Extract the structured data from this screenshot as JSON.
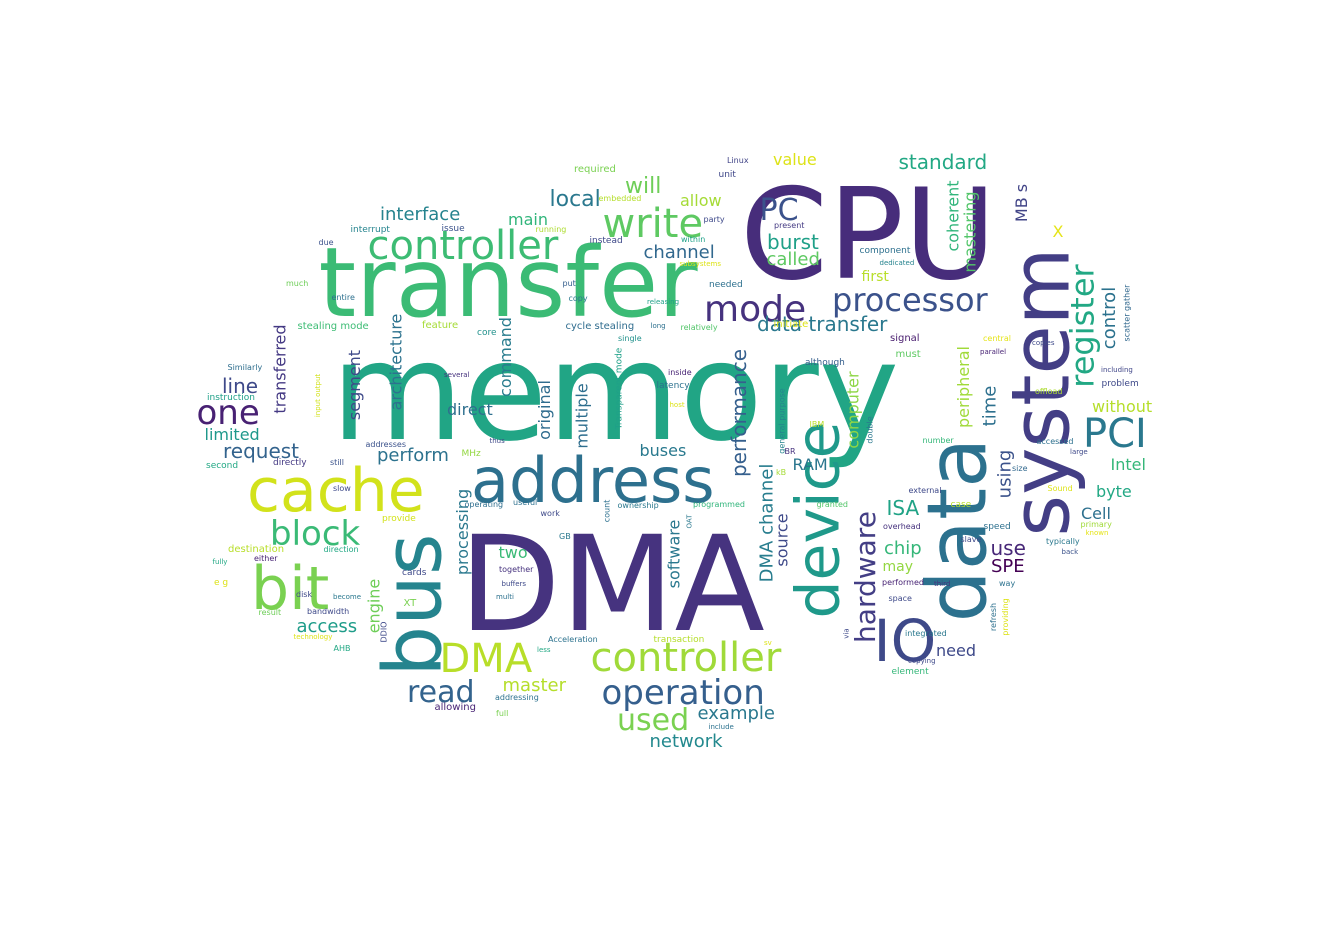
{
  "cloud": {
    "words": [
      {
        "text": "memory",
        "color": "#21a585"
      },
      {
        "text": "CPU",
        "color": "#472d7b"
      },
      {
        "text": "DMA",
        "color": "#46337f"
      },
      {
        "text": "transfer",
        "color": "#3bbb75"
      },
      {
        "text": "system",
        "color": "#433e85",
        "vertical": true
      },
      {
        "text": "data",
        "color": "#2c718e",
        "vertical": true
      },
      {
        "text": "device",
        "color": "#1f998a",
        "vertical": true
      },
      {
        "text": "bus",
        "color": "#25848e",
        "vertical": true
      },
      {
        "text": "address",
        "color": "#2d708e"
      },
      {
        "text": "cache",
        "color": "#d2e21b"
      },
      {
        "text": "bit",
        "color": "#7ad151"
      },
      {
        "text": "controller",
        "color": "#3dbc74"
      },
      {
        "text": "controller",
        "color": "#a0da39"
      },
      {
        "text": "DMA",
        "color": "#b8de29"
      },
      {
        "text": "write",
        "color": "#5ec962"
      },
      {
        "text": "mode",
        "color": "#46327e"
      },
      {
        "text": "processor",
        "color": "#3b528b"
      },
      {
        "text": "operation",
        "color": "#355f8d"
      },
      {
        "text": "block",
        "color": "#3aba76"
      },
      {
        "text": "register",
        "color": "#22a884",
        "vertical": true
      },
      {
        "text": "PCI",
        "color": "#2a788e"
      },
      {
        "text": "one",
        "color": "#482173"
      },
      {
        "text": "IO",
        "color": "#3e4989"
      },
      {
        "text": "hardware",
        "color": "#433e85",
        "vertical": true
      },
      {
        "text": "read",
        "color": "#33638d"
      },
      {
        "text": "used",
        "color": "#7ad151"
      },
      {
        "text": "data transfer",
        "color": "#2a788e"
      },
      {
        "text": "performance",
        "color": "#355f8d",
        "vertical": true
      },
      {
        "text": "local",
        "color": "#2a788e"
      },
      {
        "text": "PC",
        "color": "#3b528b"
      },
      {
        "text": "DMA channel",
        "color": "#287d8e",
        "vertical": true
      },
      {
        "text": "standard",
        "color": "#22a884"
      },
      {
        "text": "burst",
        "color": "#1fa088"
      },
      {
        "text": "called",
        "color": "#5ec962"
      },
      {
        "text": "channel",
        "color": "#31688e"
      },
      {
        "text": "will",
        "color": "#6ece58"
      },
      {
        "text": "allow",
        "color": "#a5db36"
      },
      {
        "text": "master",
        "color": "#b5de2b"
      },
      {
        "text": "example",
        "color": "#2a788e"
      },
      {
        "text": "network",
        "color": "#23898e"
      },
      {
        "text": "interface",
        "color": "#25838e"
      },
      {
        "text": "main",
        "color": "#31b57b"
      },
      {
        "text": "line",
        "color": "#3e4989"
      },
      {
        "text": "limited",
        "color": "#1f988b"
      },
      {
        "text": "request",
        "color": "#33638d"
      },
      {
        "text": "perform",
        "color": "#2c728e"
      },
      {
        "text": "direct",
        "color": "#2e6f8e"
      },
      {
        "text": "buses",
        "color": "#29798e"
      },
      {
        "text": "RAM",
        "color": "#2a768e"
      },
      {
        "text": "two",
        "color": "#3aba76"
      },
      {
        "text": "access",
        "color": "#1e9c89"
      },
      {
        "text": "ISA",
        "color": "#20a386"
      },
      {
        "text": "chip",
        "color": "#35b779"
      },
      {
        "text": "use",
        "color": "#482878"
      },
      {
        "text": "SPE",
        "color": "#440154"
      },
      {
        "text": "may",
        "color": "#93d741"
      },
      {
        "text": "need",
        "color": "#3e4989"
      },
      {
        "text": "time",
        "color": "#2d708e",
        "vertical": true
      },
      {
        "text": "using",
        "color": "#3b528b",
        "vertical": true
      },
      {
        "text": "control",
        "color": "#2c728e",
        "vertical": true
      },
      {
        "text": "without",
        "color": "#b5de2b"
      },
      {
        "text": "Intel",
        "color": "#35b779"
      },
      {
        "text": "byte",
        "color": "#22a884"
      },
      {
        "text": "Cell",
        "color": "#2d708e"
      },
      {
        "text": "X",
        "color": "#e5e419"
      },
      {
        "text": "MB s",
        "color": "#414487",
        "vertical": true
      },
      {
        "text": "coherent",
        "color": "#31b57b",
        "vertical": true
      },
      {
        "text": "mastering",
        "color": "#52c569",
        "vertical": true
      },
      {
        "text": "value",
        "color": "#dde318"
      },
      {
        "text": "first",
        "color": "#b8de29"
      },
      {
        "text": "transferred",
        "color": "#443983",
        "vertical": true
      },
      {
        "text": "segment",
        "color": "#3e4989",
        "vertical": true
      },
      {
        "text": "architecture",
        "color": "#2c728e",
        "vertical": true
      },
      {
        "text": "command",
        "color": "#287c8e",
        "vertical": true
      },
      {
        "text": "original",
        "color": "#2f6c8e",
        "vertical": true
      },
      {
        "text": "multiple",
        "color": "#2e6e8e",
        "vertical": true
      },
      {
        "text": "processing",
        "color": "#2a788e",
        "vertical": true
      },
      {
        "text": "engine",
        "color": "#6ece58",
        "vertical": true
      },
      {
        "text": "software",
        "color": "#2a788e",
        "vertical": true
      },
      {
        "text": "source",
        "color": "#3e4989",
        "vertical": true
      },
      {
        "text": "computer",
        "color": "#8ed645",
        "vertical": true
      },
      {
        "text": "peripheral",
        "color": "#a0da39",
        "vertical": true
      },
      {
        "text": "initiate",
        "color": "#dde318"
      },
      {
        "text": "cycle stealing",
        "color": "#2f6c8e"
      },
      {
        "text": "instead",
        "color": "#3e4989"
      },
      {
        "text": "Linux",
        "color": "#414487"
      },
      {
        "text": "unit",
        "color": "#3f4788"
      },
      {
        "text": "required",
        "color": "#7ad151"
      },
      {
        "text": "embedded",
        "color": "#b5de2b"
      },
      {
        "text": "party",
        "color": "#3e4989"
      },
      {
        "text": "present",
        "color": "#443a83"
      },
      {
        "text": "within",
        "color": "#1fa188"
      },
      {
        "text": "component",
        "color": "#2d708e"
      },
      {
        "text": "dedicated",
        "color": "#25838e"
      },
      {
        "text": "interrupt",
        "color": "#25848e"
      },
      {
        "text": "issue",
        "color": "#3b528b"
      },
      {
        "text": "running",
        "color": "#addc30"
      },
      {
        "text": "due",
        "color": "#3b528b"
      },
      {
        "text": "much",
        "color": "#6ece58"
      },
      {
        "text": "entire",
        "color": "#2d708e"
      },
      {
        "text": "put",
        "color": "#355f8d"
      },
      {
        "text": "copy",
        "color": "#2a788e"
      },
      {
        "text": "needed",
        "color": "#2d708e"
      },
      {
        "text": "releasing",
        "color": "#1fa088"
      },
      {
        "text": "subsystems",
        "color": "#dde318"
      },
      {
        "text": "stealing mode",
        "color": "#3dbc74"
      },
      {
        "text": "feature",
        "color": "#a5db36"
      },
      {
        "text": "core",
        "color": "#21918c"
      },
      {
        "text": "long",
        "color": "#2d708e"
      },
      {
        "text": "relatively",
        "color": "#52c569"
      },
      {
        "text": "central",
        "color": "#e5e419"
      },
      {
        "text": "signal",
        "color": "#481c6e"
      },
      {
        "text": "must",
        "color": "#5ec962"
      },
      {
        "text": "parallel",
        "color": "#482475"
      },
      {
        "text": "copies",
        "color": "#3e4989"
      },
      {
        "text": "scatter gather",
        "color": "#31688e",
        "vertical": true
      },
      {
        "text": "including",
        "color": "#404688"
      },
      {
        "text": "offload",
        "color": "#addc30"
      },
      {
        "text": "problem",
        "color": "#3e4989"
      },
      {
        "text": "although",
        "color": "#355f8d"
      },
      {
        "text": "single",
        "color": "#21918c"
      },
      {
        "text": "inside",
        "color": "#482475"
      },
      {
        "text": "latency",
        "color": "#2c718e"
      },
      {
        "text": "host",
        "color": "#dde318"
      },
      {
        "text": "several",
        "color": "#46327e"
      },
      {
        "text": "Transparent mode",
        "color": "#1fa088",
        "vertical": true
      },
      {
        "text": "general purpose",
        "color": "#25848e",
        "vertical": true
      },
      {
        "text": "IBM",
        "color": "#b8de29"
      },
      {
        "text": "double",
        "color": "#2a788e",
        "vertical": true
      },
      {
        "text": "via",
        "color": "#3e4989",
        "vertical": true
      },
      {
        "text": "Similarly",
        "color": "#2e6e8e"
      },
      {
        "text": "instruction",
        "color": "#1fa088"
      },
      {
        "text": "input output",
        "color": "#d2e21b",
        "vertical": true
      },
      {
        "text": "addresses",
        "color": "#3b528b"
      },
      {
        "text": "thus",
        "color": "#3e4989"
      },
      {
        "text": "MHz",
        "color": "#93d741"
      },
      {
        "text": "second",
        "color": "#22a884"
      },
      {
        "text": "directly",
        "color": "#443983"
      },
      {
        "text": "still",
        "color": "#3b528b"
      },
      {
        "text": "slow",
        "color": "#3e4989"
      },
      {
        "text": "useful",
        "color": "#2d708e"
      },
      {
        "text": "operating",
        "color": "#2e6e8e"
      },
      {
        "text": "work",
        "color": "#3e4989"
      },
      {
        "text": "ownership",
        "color": "#2a788e"
      },
      {
        "text": "count",
        "color": "#2d708e",
        "vertical": true
      },
      {
        "text": "OAT",
        "color": "#2a788e",
        "vertical": true
      },
      {
        "text": "programmed",
        "color": "#31b57b"
      },
      {
        "text": "granted",
        "color": "#52c569"
      },
      {
        "text": "BR",
        "color": "#46327e"
      },
      {
        "text": "kB",
        "color": "#a5db36"
      },
      {
        "text": "external",
        "color": "#3e4989"
      },
      {
        "text": "case",
        "color": "#b8de29"
      },
      {
        "text": "overhead",
        "color": "#46327e"
      },
      {
        "text": "speed",
        "color": "#2d708e"
      },
      {
        "text": "primary",
        "color": "#a0da39"
      },
      {
        "text": "known",
        "color": "#e5e419"
      },
      {
        "text": "slave",
        "color": "#3e4989"
      },
      {
        "text": "typically",
        "color": "#2a788e"
      },
      {
        "text": "back",
        "color": "#3b528b"
      },
      {
        "text": "accessed",
        "color": "#2d708e"
      },
      {
        "text": "large",
        "color": "#3e4989"
      },
      {
        "text": "size",
        "color": "#31688e"
      },
      {
        "text": "Sound",
        "color": "#dde318"
      },
      {
        "text": "number",
        "color": "#35b779"
      },
      {
        "text": "performed",
        "color": "#482475"
      },
      {
        "text": "third",
        "color": "#46327e"
      },
      {
        "text": "way",
        "color": "#2c728e"
      },
      {
        "text": "space",
        "color": "#3e4989"
      },
      {
        "text": "refresh",
        "color": "#2d708e",
        "vertical": true
      },
      {
        "text": "providing",
        "color": "#dde318",
        "vertical": true
      },
      {
        "text": "integrated",
        "color": "#2a788e"
      },
      {
        "text": "copying",
        "color": "#3e4989"
      },
      {
        "text": "element",
        "color": "#35b779"
      },
      {
        "text": "destination",
        "color": "#b8de29"
      },
      {
        "text": "direction",
        "color": "#22a884"
      },
      {
        "text": "fully",
        "color": "#22a884"
      },
      {
        "text": "either",
        "color": "#482475"
      },
      {
        "text": "e g",
        "color": "#dde318"
      },
      {
        "text": "cards",
        "color": "#3e4989"
      },
      {
        "text": "disk",
        "color": "#3e4989"
      },
      {
        "text": "become",
        "color": "#2a788e"
      },
      {
        "text": "together",
        "color": "#46327e"
      },
      {
        "text": "buffers",
        "color": "#3e4989"
      },
      {
        "text": "multi",
        "color": "#2c718e"
      },
      {
        "text": "result",
        "color": "#6ece58"
      },
      {
        "text": "bandwidth",
        "color": "#3e4989"
      },
      {
        "text": "XT",
        "color": "#7ad151"
      },
      {
        "text": "DDIO",
        "color": "#3e4989",
        "vertical": true
      },
      {
        "text": "technology",
        "color": "#dde318"
      },
      {
        "text": "AHB",
        "color": "#22a884"
      },
      {
        "text": "provide",
        "color": "#d2e21b"
      },
      {
        "text": "GB",
        "color": "#2a788e"
      },
      {
        "text": "Acceleration",
        "color": "#2c728e"
      },
      {
        "text": "less",
        "color": "#22a884"
      },
      {
        "text": "transaction",
        "color": "#b5de2b"
      },
      {
        "text": "addressing",
        "color": "#2c718e"
      },
      {
        "text": "allowing",
        "color": "#482475"
      },
      {
        "text": "full",
        "color": "#7ad151"
      },
      {
        "text": "include",
        "color": "#2c728e"
      },
      {
        "text": "sv",
        "color": "#dde318"
      }
    ]
  }
}
